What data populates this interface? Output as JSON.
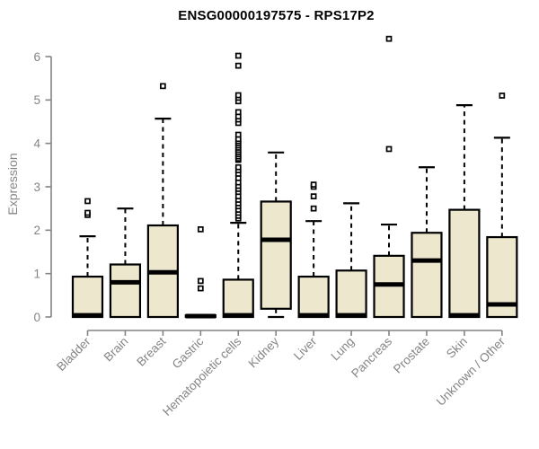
{
  "title": "ENSG00000197575 - RPS17P2",
  "colors": {
    "box_fill": "#ece7cd",
    "box_stroke": "#000000",
    "median": "#000000",
    "outlier_fill": "#ffffff",
    "axis": "#848484",
    "title": "#000000",
    "background": "#ffffff"
  },
  "chart_data": {
    "type": "boxplot",
    "title": "ENSG00000197575 - RPS17P2",
    "xlabel": "",
    "ylabel": "Expression",
    "ylim": [
      0,
      6
    ],
    "yticks": [
      0,
      1,
      2,
      3,
      4,
      5,
      6
    ],
    "grid": false,
    "categories": [
      "Bladder",
      "Brain",
      "Breast",
      "Gastric",
      "Hematopoietic cells",
      "Kidney",
      "Liver",
      "Lung",
      "Pancreas",
      "Prostate",
      "Skin",
      "Unknown / Other"
    ],
    "series": [
      {
        "label": "Bladder",
        "low": 0,
        "q1": 0,
        "median": 0.04,
        "q3": 0.93,
        "high": 1.86,
        "outliers": [
          2.35,
          2.4,
          2.67
        ]
      },
      {
        "label": "Brain",
        "low": 0,
        "q1": 0,
        "median": 0.8,
        "q3": 1.21,
        "high": 2.5,
        "outliers": []
      },
      {
        "label": "Breast",
        "low": 0,
        "q1": 0,
        "median": 1.03,
        "q3": 2.11,
        "high": 4.57,
        "outliers": [
          5.32
        ]
      },
      {
        "label": "Gastric",
        "low": 0,
        "q1": 0,
        "median": 0.02,
        "q3": 0.04,
        "high": 0.04,
        "outliers": [
          0.66,
          0.83,
          2.02
        ]
      },
      {
        "label": "Hematopoietic cells",
        "low": 0,
        "q1": 0,
        "median": 0.04,
        "q3": 0.86,
        "high": 2.17,
        "outliers": [
          2.27,
          2.33,
          2.4,
          2.47,
          2.55,
          2.62,
          2.7,
          2.78,
          2.88,
          2.95,
          3.02,
          3.1,
          3.2,
          3.3,
          3.38,
          3.45,
          3.62,
          3.65,
          3.7,
          3.75,
          3.8,
          3.85,
          3.9,
          3.95,
          4.0,
          4.05,
          4.1,
          4.2,
          4.47,
          4.55,
          4.62,
          4.72,
          4.97,
          5.05,
          5.11,
          5.79,
          6.02
        ]
      },
      {
        "label": "Kidney",
        "low": 0,
        "q1": 0.19,
        "median": 1.78,
        "q3": 2.66,
        "high": 3.79,
        "outliers": []
      },
      {
        "label": "Liver",
        "low": 0,
        "q1": 0,
        "median": 0.04,
        "q3": 0.93,
        "high": 2.21,
        "outliers": [
          2.5,
          2.78,
          3.0,
          3.05
        ]
      },
      {
        "label": "Lung",
        "low": 0,
        "q1": 0,
        "median": 0.04,
        "q3": 1.07,
        "high": 2.62,
        "outliers": []
      },
      {
        "label": "Pancreas",
        "low": 0,
        "q1": 0,
        "median": 0.75,
        "q3": 1.41,
        "high": 2.13,
        "outliers": [
          3.87,
          6.41
        ]
      },
      {
        "label": "Prostate",
        "low": 0,
        "q1": 0,
        "median": 1.3,
        "q3": 1.94,
        "high": 3.45,
        "outliers": []
      },
      {
        "label": "Skin",
        "low": 0,
        "q1": 0,
        "median": 0.04,
        "q3": 2.47,
        "high": 4.88,
        "outliers": []
      },
      {
        "label": "Unknown / Other",
        "low": 0,
        "q1": 0,
        "median": 0.29,
        "q3": 1.84,
        "high": 4.13,
        "outliers": [
          5.1
        ]
      }
    ]
  }
}
